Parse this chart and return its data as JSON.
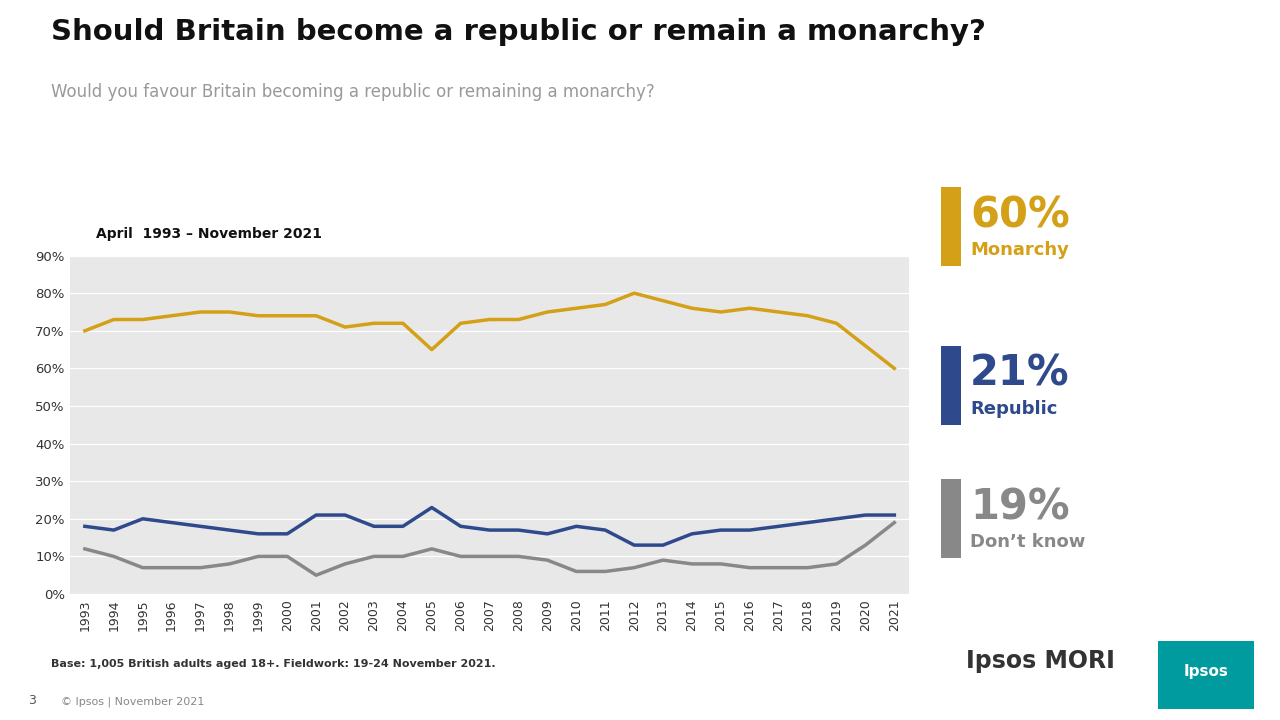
{
  "title": "Should Britain become a republic or remain a monarchy?",
  "subtitle": "Would you favour Britain becoming a republic or remaining a monarchy?",
  "date_label": "April  1993 – November 2021",
  "base_note": "Base: 1,005 British adults aged 18+. Fieldwork: 19-24 November 2021.",
  "background_color": "#ffffff",
  "plot_bg_color": "#e8e8e8",
  "years": [
    1993,
    1994,
    1995,
    1996,
    1997,
    1998,
    1999,
    2000,
    2001,
    2002,
    2003,
    2004,
    2005,
    2006,
    2007,
    2008,
    2009,
    2010,
    2011,
    2012,
    2013,
    2014,
    2015,
    2016,
    2017,
    2018,
    2019,
    2020,
    2021
  ],
  "monarchy": [
    70,
    73,
    73,
    74,
    75,
    75,
    74,
    74,
    74,
    71,
    72,
    72,
    65,
    72,
    73,
    73,
    75,
    76,
    77,
    80,
    78,
    76,
    75,
    76,
    75,
    74,
    72,
    66,
    60
  ],
  "republic": [
    18,
    17,
    20,
    19,
    18,
    17,
    16,
    16,
    21,
    21,
    18,
    18,
    23,
    18,
    17,
    17,
    16,
    18,
    17,
    13,
    13,
    16,
    17,
    17,
    18,
    19,
    20,
    21,
    21
  ],
  "dont_know": [
    12,
    10,
    7,
    7,
    7,
    8,
    10,
    10,
    5,
    8,
    10,
    10,
    12,
    10,
    10,
    10,
    9,
    6,
    6,
    7,
    9,
    8,
    8,
    7,
    7,
    7,
    8,
    13,
    19
  ],
  "monarchy_color": "#D4A017",
  "republic_color": "#2E4A8C",
  "dont_know_color": "#888888",
  "monarchy_label_pct": "60%",
  "monarchy_label_name": "Monarchy",
  "republic_label_pct": "21%",
  "republic_label_name": "Republic",
  "dont_know_label_pct": "19%",
  "dont_know_label_name": "Don’t know",
  "ylim": [
    0,
    90
  ],
  "yticks": [
    0,
    10,
    20,
    30,
    40,
    50,
    60,
    70,
    80,
    90
  ],
  "line_width": 2.5
}
